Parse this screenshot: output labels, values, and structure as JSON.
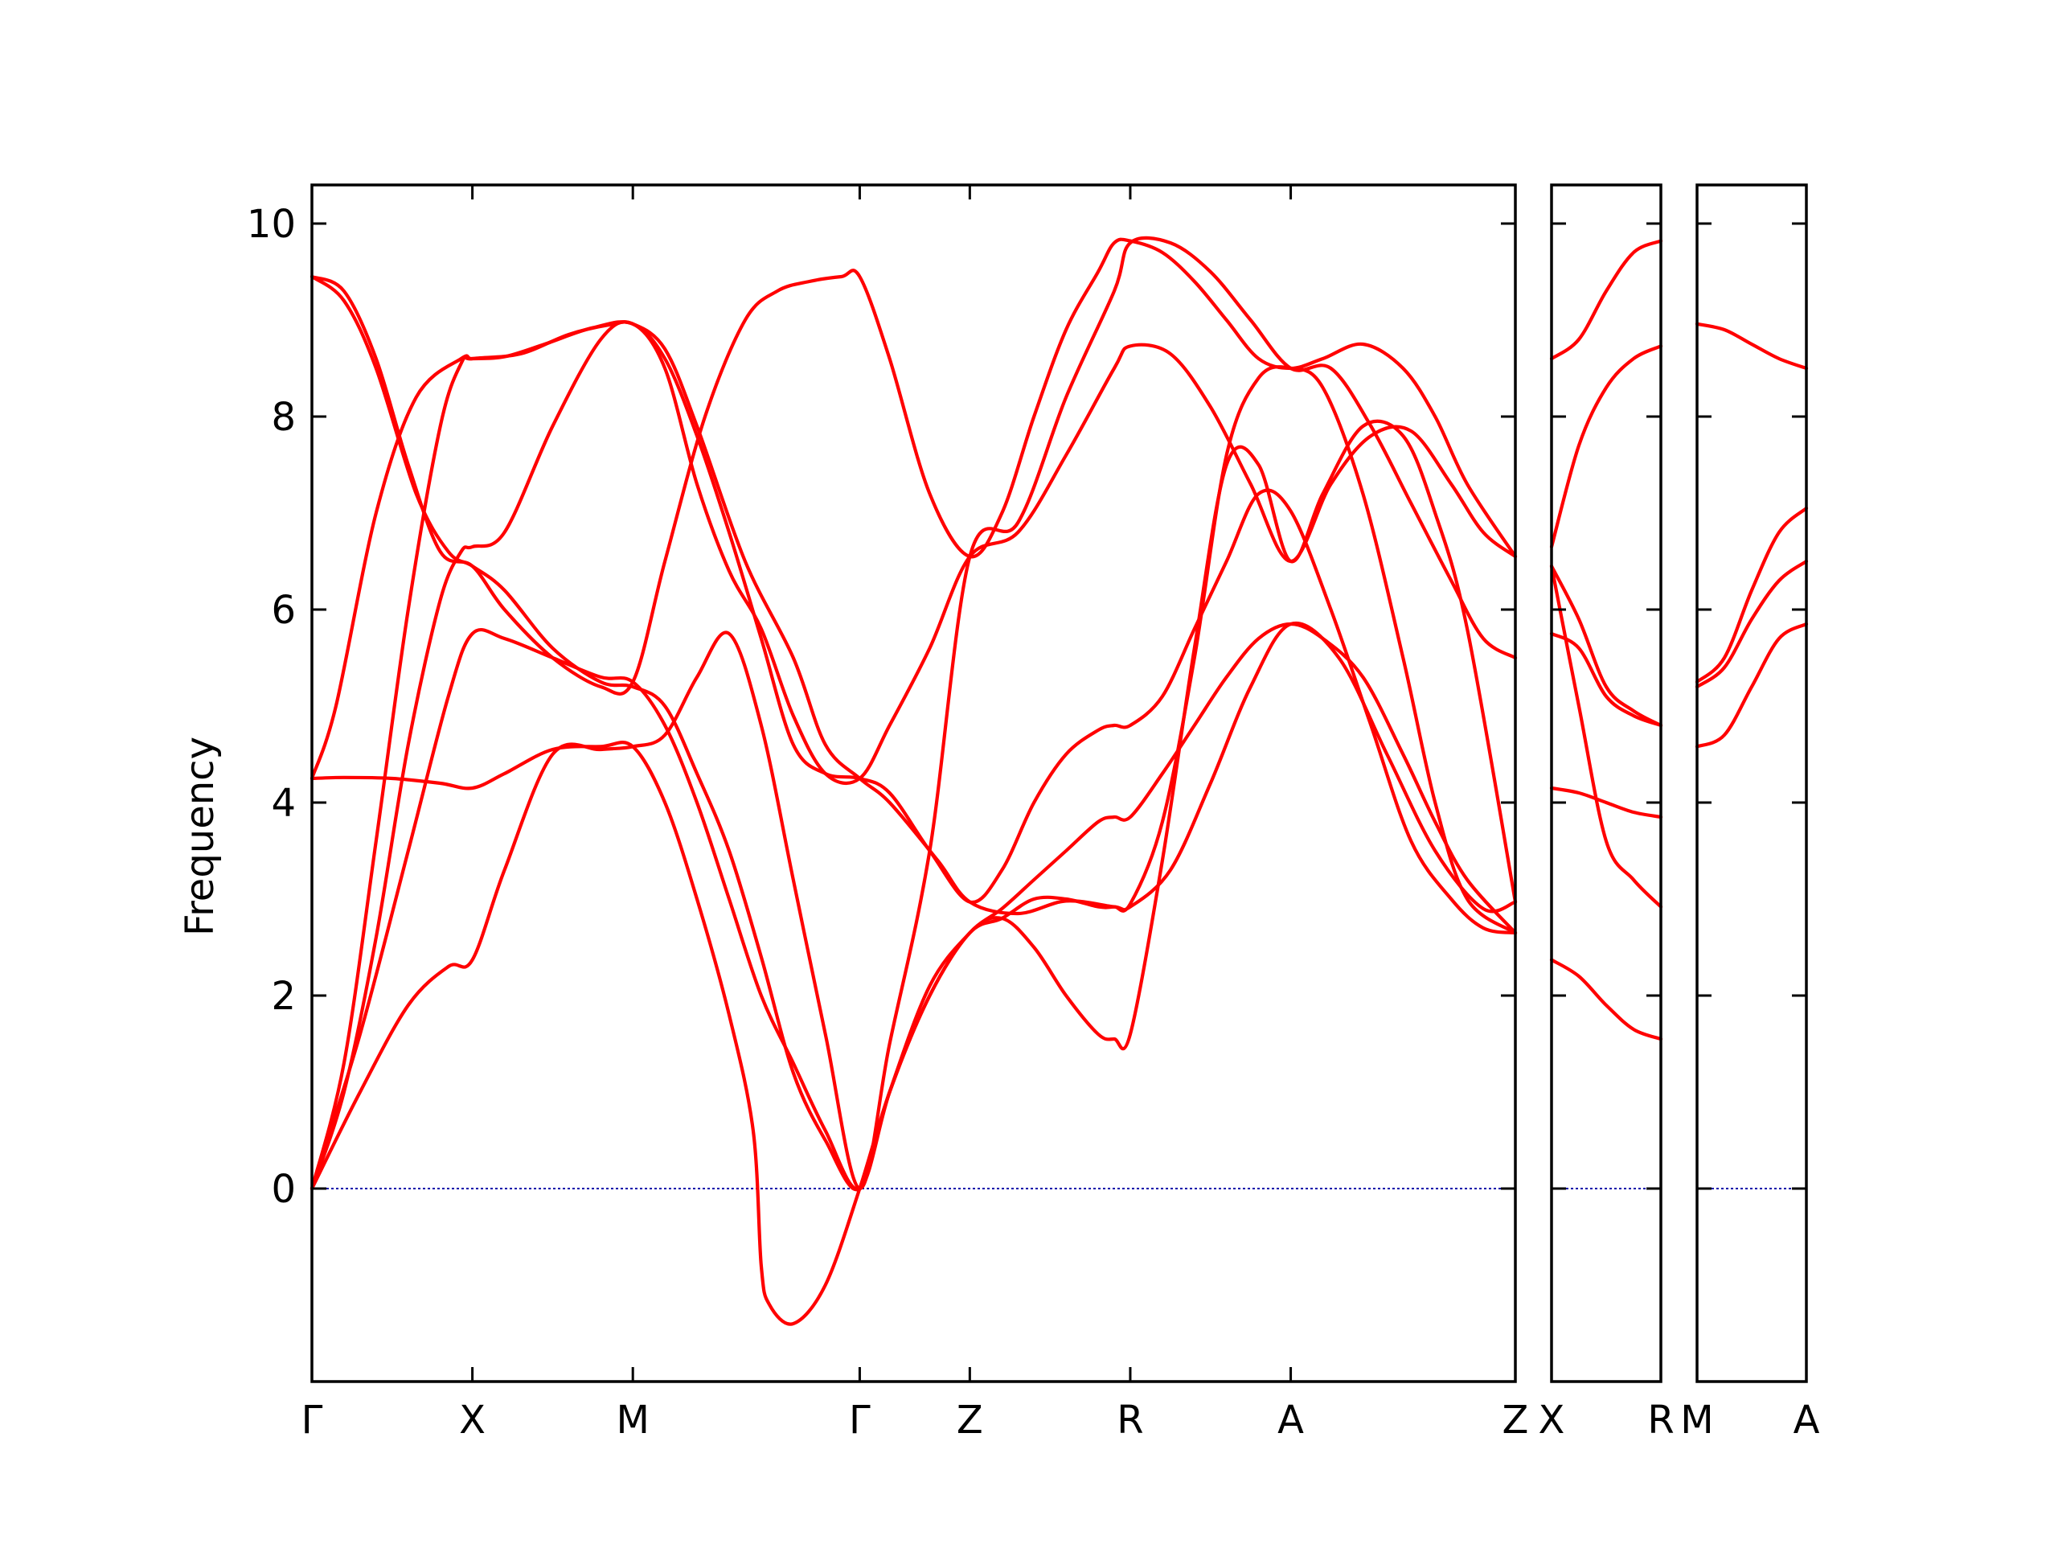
{
  "chart_data": {
    "type": "line",
    "title": "",
    "xlabel": "",
    "ylabel": "Frequency",
    "ylim": [
      -2,
      10.4
    ],
    "yticks": [
      0,
      2,
      4,
      6,
      8,
      10
    ],
    "line_color": "#ff0000",
    "zero_line_color": "#0000aa",
    "grid": false,
    "legend": "none",
    "panels": [
      {
        "xlim": [
          0,
          7.5
        ],
        "ticks": [
          {
            "x": 0,
            "label": "Γ"
          },
          {
            "x": 1,
            "label": "X"
          },
          {
            "x": 2,
            "label": "M"
          },
          {
            "x": 3.414,
            "label": "Γ"
          },
          {
            "x": 4.1,
            "label": "Z"
          },
          {
            "x": 5.1,
            "label": "R"
          },
          {
            "x": 6.1,
            "label": "A"
          },
          {
            "x": 7.5,
            "label": "Z"
          }
        ],
        "series": [
          {
            "x": [
              0,
              0.2,
              0.4,
              0.6,
              0.8,
              0.93,
              1,
              1.3,
              1.6,
              1.85,
              2,
              2.2,
              2.4,
              2.7,
              3.0,
              3.2,
              3.414,
              3.6,
              3.9,
              4.1,
              4.4,
              4.7,
              5.0,
              5.1,
              5.35,
              5.6,
              5.85,
              6.1,
              6.4,
              6.7,
              7.0,
              7.3,
              7.5
            ],
            "y": [
              0,
              1.3,
              3.6,
              6.0,
              7.9,
              8.55,
              8.6,
              8.65,
              8.85,
              8.95,
              8.96,
              8.7,
              7.9,
              6.5,
              5.5,
              4.6,
              4.25,
              4.0,
              3.4,
              2.97,
              2.85,
              2.98,
              2.92,
              2.92,
              3.3,
              4.2,
              5.2,
              5.85,
              5.5,
              4.5,
              3.5,
              2.9,
              2.97
            ]
          },
          {
            "x": [
              0,
              0.2,
              0.4,
              0.6,
              0.8,
              0.93,
              1,
              1.2,
              1.5,
              1.8,
              2,
              2.2,
              2.4,
              2.6,
              2.8,
              3.0,
              3.2,
              3.414,
              3.6,
              3.85,
              4.1,
              4.4,
              4.7,
              5.0,
              5.1,
              5.35,
              5.6,
              5.85,
              6.1,
              6.35,
              6.6,
              6.85,
              7.1,
              7.3,
              7.5
            ],
            "y": [
              0,
              1.0,
              2.6,
              4.6,
              6.1,
              6.6,
              6.65,
              6.8,
              7.9,
              8.8,
              8.96,
              8.5,
              7.3,
              6.4,
              5.8,
              4.9,
              4.3,
              4.25,
              4.8,
              5.6,
              6.55,
              6.8,
              7.6,
              8.5,
              8.73,
              8.65,
              8.1,
              7.3,
              6.5,
              7.3,
              7.8,
              7.85,
              7.3,
              6.8,
              6.55
            ]
          },
          {
            "x": [
              0,
              0.3,
              0.6,
              0.85,
              1,
              1.2,
              1.5,
              1.8,
              2,
              2.2,
              2.4,
              2.6,
              2.8,
              3.0,
              3.2,
              3.414,
              3.6,
              3.85,
              4.1,
              4.4,
              4.7,
              5.0,
              5.1,
              5.35,
              5.6,
              5.85,
              6.1,
              6.35,
              6.6,
              6.85,
              7.1,
              7.3,
              7.5
            ],
            "y": [
              0,
              1.0,
              1.9,
              2.3,
              2.37,
              3.3,
              4.5,
              4.55,
              4.58,
              4.7,
              5.3,
              5.75,
              4.8,
              3.2,
              1.6,
              0,
              1.5,
              3.5,
              6.55,
              6.9,
              8.2,
              9.3,
              9.8,
              9.8,
              9.5,
              9.0,
              8.5,
              8.5,
              7.9,
              7.1,
              6.3,
              5.7,
              5.5
            ]
          },
          {
            "x": [
              0,
              0.2,
              0.5,
              0.8,
              1,
              1.2,
              1.5,
              1.8,
              2,
              2.2,
              2.4,
              2.6,
              2.75,
              2.8,
              2.85,
              3.0,
              3.2,
              3.414,
              3.6,
              3.85,
              4.1,
              4.3,
              4.5,
              4.7,
              4.9,
              5.0,
              5.1,
              5.3,
              5.5,
              5.7,
              5.9,
              6.1,
              6.3,
              6.55,
              6.8,
              7.0,
              7.2,
              7.5
            ],
            "y": [
              4.25,
              4.26,
              4.25,
              4.2,
              4.15,
              4.3,
              4.55,
              4.58,
              4.58,
              4.0,
              3.0,
              1.8,
              0.6,
              -0.8,
              -1.2,
              -1.4,
              -1.0,
              0,
              1.0,
              2.0,
              2.65,
              2.8,
              3.0,
              3.0,
              2.92,
              2.92,
              2.95,
              3.8,
              5.5,
              7.6,
              8.4,
              8.5,
              8.3,
              7.2,
              5.5,
              4.0,
              3.0,
              2.65
            ]
          },
          {
            "x": [
              0,
              0.15,
              0.4,
              0.65,
              0.93,
              1,
              1.2,
              1.45,
              1.75,
              2,
              2.2,
              2.4,
              2.6,
              2.8,
              3.0,
              3.2,
              3.414,
              3.6,
              3.85,
              4.1,
              4.3,
              4.5,
              4.7,
              4.9,
              5.0,
              5.1,
              5.3,
              5.5,
              5.7,
              5.9,
              6.1,
              6.35,
              6.6,
              6.85,
              7.1,
              7.3,
              7.5
            ],
            "y": [
              4.25,
              5.0,
              7.0,
              8.2,
              8.6,
              8.6,
              8.62,
              8.75,
              8.92,
              8.96,
              8.6,
              7.8,
              6.8,
              5.7,
              4.6,
              4.3,
              4.25,
              4.1,
              3.5,
              2.97,
              3.3,
              4.0,
              4.5,
              4.75,
              4.8,
              4.8,
              5.1,
              5.8,
              6.5,
              7.2,
              7.02,
              6.0,
              4.8,
              3.6,
              3.0,
              2.7,
              2.65
            ]
          },
          {
            "x": [
              0,
              0.2,
              0.4,
              0.65,
              0.85,
              1,
              1.2,
              1.5,
              1.8,
              2,
              2.2,
              2.4,
              2.6,
              2.8,
              3.0,
              3.2,
              3.414,
              3.6,
              3.85,
              4.1,
              4.3,
              4.5,
              4.7,
              4.9,
              5.0,
              5.1,
              5.3,
              5.5,
              5.7,
              5.9,
              6.1,
              6.3,
              6.55,
              6.8,
              7.0,
              7.2,
              7.5
            ],
            "y": [
              9.45,
              9.2,
              8.5,
              7.2,
              6.6,
              6.45,
              6.2,
              5.6,
              5.25,
              5.2,
              5.0,
              4.3,
              3.5,
              2.4,
              1.2,
              0.5,
              0,
              1.0,
              2.0,
              2.65,
              2.8,
              2.5,
              2.0,
              1.6,
              1.55,
              1.6,
              3.4,
              5.6,
              7.5,
              7.5,
              6.5,
              7.2,
              7.9,
              7.8,
              7.0,
              5.8,
              2.97
            ]
          },
          {
            "x": [
              0,
              0.3,
              0.6,
              0.85,
              1,
              1.2,
              1.5,
              1.8,
              2,
              2.2,
              2.4,
              2.6,
              2.8,
              3.0,
              3.2,
              3.414,
              3.6,
              3.85,
              4.1,
              4.3,
              4.5,
              4.7,
              4.9,
              5.0,
              5.1,
              5.3,
              5.5,
              5.7,
              5.9,
              6.1,
              6.3,
              6.55,
              6.8,
              7.0,
              7.2,
              7.5
            ],
            "y": [
              0,
              1.6,
              3.5,
              5.1,
              5.75,
              5.7,
              5.5,
              5.3,
              5.25,
              4.8,
              4.0,
              3.0,
              2.0,
              1.3,
              0.6,
              0,
              1.0,
              2.1,
              2.65,
              2.9,
              3.2,
              3.5,
              3.8,
              3.85,
              3.85,
              4.3,
              4.8,
              5.3,
              5.7,
              5.85,
              5.7,
              5.3,
              4.5,
              3.8,
              3.2,
              2.65
            ]
          },
          {
            "x": [
              0,
              0.2,
              0.4,
              0.6,
              0.8,
              1,
              1.2,
              1.5,
              1.8,
              2,
              2.2,
              2.45,
              2.7,
              2.9,
              3.1,
              3.3,
              3.414,
              3.6,
              3.85,
              4.1,
              4.3,
              4.5,
              4.7,
              4.9,
              5.0,
              5.1,
              5.3,
              5.5,
              5.7,
              5.9,
              6.1,
              6.3,
              6.55,
              6.8,
              7.0,
              7.2,
              7.5
            ],
            "y": [
              9.45,
              9.3,
              8.6,
              7.5,
              6.6,
              6.45,
              6.0,
              5.5,
              5.2,
              5.25,
              6.5,
              8.0,
              9.0,
              9.3,
              9.4,
              9.45,
              9.45,
              8.6,
              7.2,
              6.55,
              7.0,
              8.0,
              8.9,
              9.5,
              9.8,
              9.82,
              9.7,
              9.4,
              9.0,
              8.6,
              8.5,
              8.6,
              8.75,
              8.5,
              8.0,
              7.3,
              6.55
            ]
          }
        ]
      },
      {
        "xlim": [
          0,
          1
        ],
        "ticks": [
          {
            "x": 0,
            "label": "X"
          },
          {
            "x": 1,
            "label": "R"
          }
        ],
        "series": [
          {
            "x": [
              0,
              0.25,
              0.5,
              0.75,
              1
            ],
            "y": [
              8.6,
              8.8,
              9.3,
              9.7,
              9.82
            ]
          },
          {
            "x": [
              0,
              0.25,
              0.5,
              0.75,
              1
            ],
            "y": [
              6.65,
              7.7,
              8.3,
              8.6,
              8.73
            ]
          },
          {
            "x": [
              0,
              0.25,
              0.5,
              0.75,
              1
            ],
            "y": [
              6.45,
              5.9,
              5.2,
              4.95,
              4.8
            ]
          },
          {
            "x": [
              0,
              0.25,
              0.5,
              0.75,
              1
            ],
            "y": [
              5.75,
              5.6,
              5.1,
              4.9,
              4.8
            ]
          },
          {
            "x": [
              0,
              0.25,
              0.5,
              0.75,
              1
            ],
            "y": [
              6.45,
              5.0,
              3.6,
              3.2,
              2.92
            ]
          },
          {
            "x": [
              0,
              0.25,
              0.5,
              0.75,
              1
            ],
            "y": [
              4.15,
              4.1,
              4.0,
              3.9,
              3.85
            ]
          },
          {
            "x": [
              0,
              0.25,
              0.5,
              0.75,
              1
            ],
            "y": [
              2.37,
              2.2,
              1.9,
              1.65,
              1.55
            ]
          }
        ]
      },
      {
        "xlim": [
          0,
          1
        ],
        "ticks": [
          {
            "x": 0,
            "label": "M"
          },
          {
            "x": 1,
            "label": "A"
          }
        ],
        "series": [
          {
            "x": [
              0,
              0.25,
              0.5,
              0.75,
              1
            ],
            "y": [
              8.96,
              8.9,
              8.75,
              8.6,
              8.5
            ]
          },
          {
            "x": [
              0,
              0.25,
              0.5,
              0.75,
              1
            ],
            "y": [
              5.25,
              5.5,
              6.2,
              6.8,
              7.05
            ]
          },
          {
            "x": [
              0,
              0.25,
              0.5,
              0.75,
              1
            ],
            "y": [
              5.2,
              5.4,
              5.9,
              6.3,
              6.5
            ]
          },
          {
            "x": [
              0,
              0.25,
              0.5,
              0.75,
              1
            ],
            "y": [
              4.58,
              4.7,
              5.2,
              5.7,
              5.85
            ]
          }
        ]
      }
    ]
  }
}
